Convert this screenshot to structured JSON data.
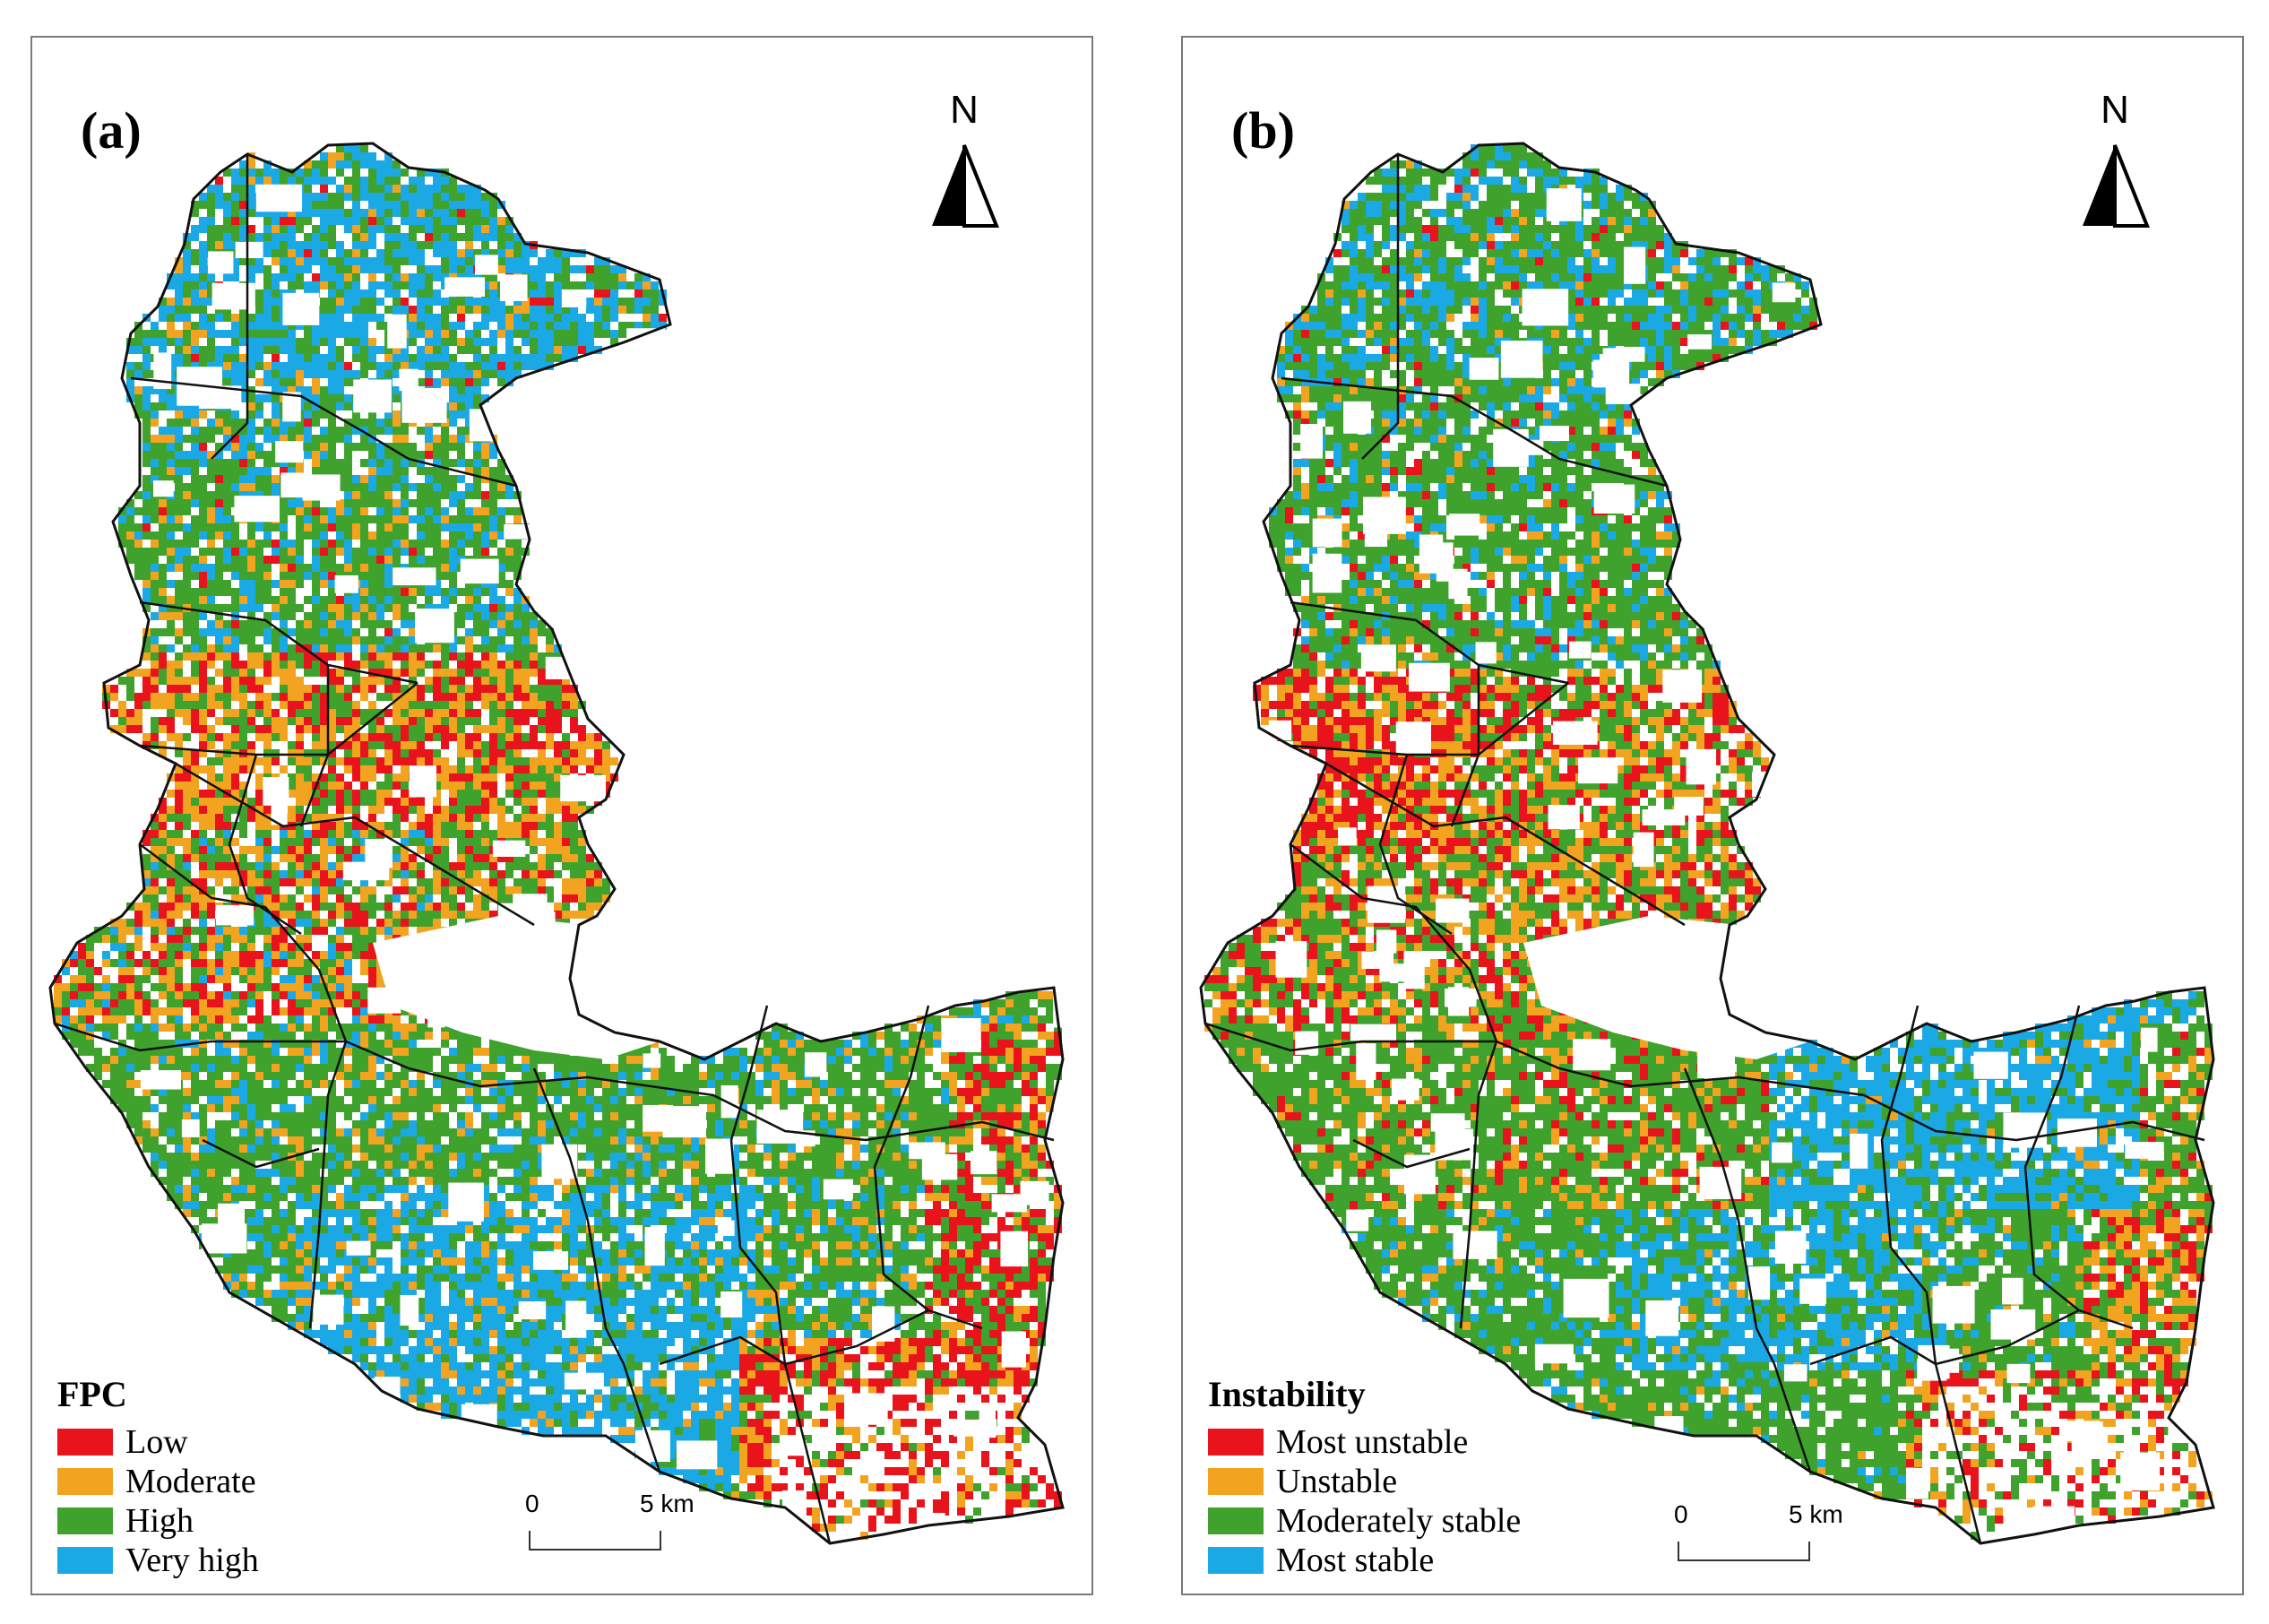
{
  "colors": {
    "red": "#e8131b",
    "orange": "#f2a31f",
    "green": "#3fa22c",
    "blue": "#1ba9e6",
    "boundary": "#111111",
    "frame": "#7a7a7a"
  },
  "panels": [
    {
      "label": "(a)",
      "north": "N",
      "legend": {
        "title": "FPC",
        "items": [
          {
            "label": "Low",
            "color": "#e8131b"
          },
          {
            "label": "Moderate",
            "color": "#f2a31f"
          },
          {
            "label": "High",
            "color": "#3fa22c"
          },
          {
            "label": "Very high",
            "color": "#1ba9e6"
          }
        ]
      },
      "scale": {
        "zero": "0",
        "max": "5 km"
      }
    },
    {
      "label": "(b)",
      "north": "N",
      "legend": {
        "title": "Instability",
        "items": [
          {
            "label": "Most unstable",
            "color": "#e8131b"
          },
          {
            "label": "Unstable",
            "color": "#f2a31f"
          },
          {
            "label": "Moderately stable",
            "color": "#3fa22c"
          },
          {
            "label": "Most stable",
            "color": "#1ba9e6"
          }
        ]
      },
      "scale": {
        "zero": "0",
        "max": "5 km"
      }
    }
  ]
}
